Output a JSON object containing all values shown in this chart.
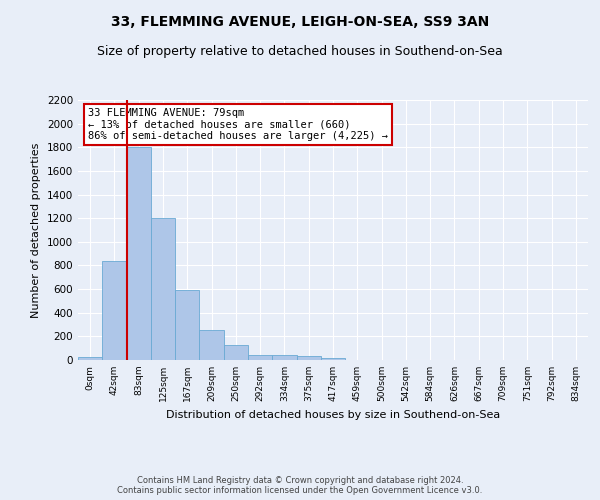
{
  "title": "33, FLEMMING AVENUE, LEIGH-ON-SEA, SS9 3AN",
  "subtitle": "Size of property relative to detached houses in Southend-on-Sea",
  "xlabel": "Distribution of detached houses by size in Southend-on-Sea",
  "ylabel": "Number of detached properties",
  "footer_line1": "Contains HM Land Registry data © Crown copyright and database right 2024.",
  "footer_line2": "Contains public sector information licensed under the Open Government Licence v3.0.",
  "categories": [
    "0sqm",
    "42sqm",
    "83sqm",
    "125sqm",
    "167sqm",
    "209sqm",
    "250sqm",
    "292sqm",
    "334sqm",
    "375sqm",
    "417sqm",
    "459sqm",
    "500sqm",
    "542sqm",
    "584sqm",
    "626sqm",
    "667sqm",
    "709sqm",
    "751sqm",
    "792sqm",
    "834sqm"
  ],
  "bar_values": [
    25,
    840,
    1800,
    1200,
    590,
    255,
    130,
    45,
    45,
    30,
    20,
    0,
    0,
    0,
    0,
    0,
    0,
    0,
    0,
    0,
    0
  ],
  "bar_color": "#aec6e8",
  "bar_edge_color": "#6aaad4",
  "ylim": [
    0,
    2200
  ],
  "yticks": [
    0,
    200,
    400,
    600,
    800,
    1000,
    1200,
    1400,
    1600,
    1800,
    2000,
    2200
  ],
  "vline_x_index": 2,
  "vline_color": "#cc0000",
  "annotation_text": "33 FLEMMING AVENUE: 79sqm\n← 13% of detached houses are smaller (660)\n86% of semi-detached houses are larger (4,225) →",
  "annotation_box_color": "#cc0000",
  "background_color": "#e8eef8",
  "title_fontsize": 10,
  "subtitle_fontsize": 9
}
